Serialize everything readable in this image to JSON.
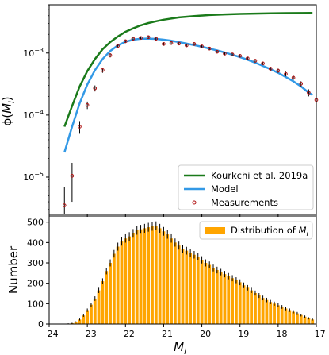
{
  "chart_data": [
    {
      "type": "line",
      "panel": "top",
      "ylabel_base": "ϕ(",
      "ylabel_sub": "M",
      "ylabel_subscript": "i",
      "ylabel_end": ")",
      "yscale": "log",
      "xlim": [
        -24,
        -17
      ],
      "ylim": [
        2.5e-06,
        0.006
      ],
      "grid": false,
      "legend_position": "lower-right",
      "y_ticks": [
        {
          "value": 1e-05,
          "base": "10",
          "exp": "−5"
        },
        {
          "value": 0.0001,
          "base": "10",
          "exp": "−4"
        },
        {
          "value": 0.001,
          "base": "10",
          "exp": "−3"
        }
      ],
      "series": [
        {
          "name": "Kourkchi et al. 2019a",
          "kind": "line",
          "color": "#1a7a1a",
          "x": [
            -23.6,
            -23.4,
            -23.2,
            -23.0,
            -22.8,
            -22.6,
            -22.4,
            -22.2,
            -22.0,
            -21.8,
            -21.6,
            -21.4,
            -21.2,
            -21.0,
            -20.6,
            -20.2,
            -19.8,
            -19.4,
            -19.0,
            -18.6,
            -18.2,
            -17.8,
            -17.4,
            -17.1
          ],
          "y": [
            6.5e-05,
            0.00014,
            0.00029,
            0.00051,
            0.0008,
            0.00115,
            0.0015,
            0.00185,
            0.0022,
            0.0025,
            0.0028,
            0.00305,
            0.00325,
            0.00345,
            0.00375,
            0.00395,
            0.0041,
            0.0042,
            0.00428,
            0.00433,
            0.00437,
            0.0044,
            0.00442,
            0.00443
          ]
        },
        {
          "name": "Model",
          "kind": "line",
          "color": "#3399e6",
          "x": [
            -23.6,
            -23.4,
            -23.2,
            -23.0,
            -22.8,
            -22.6,
            -22.4,
            -22.2,
            -22.0,
            -21.8,
            -21.6,
            -21.4,
            -21.2,
            -21.0,
            -20.8,
            -20.6,
            -20.4,
            -20.2,
            -20.0,
            -19.8,
            -19.6,
            -19.4,
            -19.2,
            -19.0,
            -18.8,
            -18.6,
            -18.4,
            -18.2,
            -18.0,
            -17.8,
            -17.6,
            -17.4,
            -17.2,
            -17.1
          ],
          "y": [
            2.5e-05,
            6.5e-05,
            0.000155,
            0.00031,
            0.00053,
            0.0008,
            0.00108,
            0.00133,
            0.00152,
            0.00164,
            0.0017,
            0.00171,
            0.00169,
            0.00164,
            0.00158,
            0.0015,
            0.00142,
            0.00134,
            0.00126,
            0.00118,
            0.0011,
            0.00102,
            0.00094,
            0.00086,
            0.00078,
            0.0007,
            0.00062,
            0.00055,
            0.00048,
            0.00041,
            0.00035,
            0.00029,
            0.00023,
            0.00021
          ]
        },
        {
          "name": "Measurements",
          "kind": "scatter",
          "color": "#b01010",
          "x": [
            -23.6,
            -23.4,
            -23.2,
            -23.0,
            -22.8,
            -22.6,
            -22.4,
            -22.2,
            -22.0,
            -21.8,
            -21.6,
            -21.4,
            -21.2,
            -21.0,
            -20.8,
            -20.6,
            -20.4,
            -20.2,
            -20.0,
            -19.8,
            -19.6,
            -19.4,
            -19.2,
            -19.0,
            -18.8,
            -18.6,
            -18.4,
            -18.2,
            -18.0,
            -17.8,
            -17.6,
            -17.4,
            -17.2,
            -17.0
          ],
          "y": [
            3.5e-06,
            1.05e-05,
            6.5e-05,
            0.000145,
            0.00027,
            0.00053,
            0.00092,
            0.0013,
            0.00155,
            0.0017,
            0.00175,
            0.0018,
            0.0017,
            0.0014,
            0.00145,
            0.00142,
            0.00133,
            0.0014,
            0.00128,
            0.00118,
            0.00105,
            0.00098,
            0.00095,
            0.0009,
            0.00082,
            0.00075,
            0.00068,
            0.00056,
            0.00052,
            0.00046,
            0.0004,
            0.00032,
            0.00023,
            0.000175
          ],
          "err_lo": [
            2.2e-06,
            6.5e-06,
            1.5e-05,
            2e-05,
            3e-05,
            5e-05,
            7e-05,
            9e-05,
            0.0001,
            0.0001,
            0.0001,
            0.0001,
            0.0001,
            9e-05,
            9e-05,
            8e-05,
            8e-05,
            8e-05,
            7e-05,
            7e-05,
            6e-05,
            6e-05,
            6e-05,
            5e-05,
            5e-05,
            5e-05,
            4e-05,
            4e-05,
            4e-05,
            4e-05,
            3e-05,
            3e-05,
            3e-05,
            2e-05
          ],
          "err_hi": [
            3.5e-06,
            6.5e-06,
            1.5e-05,
            2e-05,
            3e-05,
            5e-05,
            7e-05,
            9e-05,
            0.0001,
            0.0001,
            0.0001,
            0.0001,
            0.0001,
            9e-05,
            9e-05,
            8e-05,
            8e-05,
            8e-05,
            7e-05,
            7e-05,
            6e-05,
            6e-05,
            6e-05,
            5e-05,
            5e-05,
            5e-05,
            4e-05,
            4e-05,
            4e-05,
            4e-05,
            3e-05,
            3e-05,
            3e-05,
            2e-05
          ]
        }
      ]
    },
    {
      "type": "bar",
      "panel": "bottom",
      "xlabel_base": "M",
      "xlabel_subscript": "i",
      "ylabel": "Number",
      "xlim": [
        -24,
        -17
      ],
      "ylim": [
        0,
        530
      ],
      "grid": false,
      "legend_position": "top-right",
      "x_ticks": [
        {
          "value": -24,
          "label": "−24"
        },
        {
          "value": -23,
          "label": "−23"
        },
        {
          "value": -22,
          "label": "−22"
        },
        {
          "value": -21,
          "label": "−21"
        },
        {
          "value": -20,
          "label": "−20"
        },
        {
          "value": -19,
          "label": "−19"
        },
        {
          "value": -18,
          "label": "−18"
        },
        {
          "value": -17,
          "label": "−17"
        }
      ],
      "y_ticks": [
        {
          "value": 0,
          "label": "0"
        },
        {
          "value": 100,
          "label": "100"
        },
        {
          "value": 200,
          "label": "200"
        },
        {
          "value": 300,
          "label": "300"
        },
        {
          "value": 400,
          "label": "400"
        },
        {
          "value": 500,
          "label": "500"
        }
      ],
      "bar_width": 0.08,
      "series": [
        {
          "name_base": "Distribution of ",
          "name_var": "M",
          "name_subscript": "i",
          "color": "#ffa500",
          "x": [
            -23.9,
            -23.8,
            -23.7,
            -23.6,
            -23.5,
            -23.4,
            -23.3,
            -23.2,
            -23.1,
            -23.0,
            -22.9,
            -22.8,
            -22.7,
            -22.6,
            -22.5,
            -22.4,
            -22.3,
            -22.2,
            -22.1,
            -22.0,
            -21.9,
            -21.8,
            -21.7,
            -21.6,
            -21.5,
            -21.4,
            -21.3,
            -21.2,
            -21.1,
            -21.0,
            -20.9,
            -20.8,
            -20.7,
            -20.6,
            -20.5,
            -20.4,
            -20.3,
            -20.2,
            -20.1,
            -20.0,
            -19.9,
            -19.8,
            -19.7,
            -19.6,
            -19.5,
            -19.4,
            -19.3,
            -19.2,
            -19.1,
            -19.0,
            -18.9,
            -18.8,
            -18.7,
            -18.6,
            -18.5,
            -18.4,
            -18.3,
            -18.2,
            -18.1,
            -18.0,
            -17.9,
            -17.8,
            -17.7,
            -17.6,
            -17.5,
            -17.4,
            -17.3,
            -17.2,
            -17.1
          ],
          "values": [
            0,
            0,
            0,
            1,
            2,
            4,
            10,
            22,
            42,
            68,
            95,
            125,
            165,
            210,
            260,
            300,
            345,
            380,
            405,
            420,
            430,
            445,
            460,
            465,
            470,
            475,
            480,
            482,
            470,
            455,
            440,
            420,
            400,
            385,
            370,
            360,
            350,
            340,
            330,
            315,
            300,
            290,
            275,
            265,
            255,
            245,
            235,
            225,
            215,
            205,
            190,
            178,
            165,
            152,
            140,
            128,
            118,
            108,
            100,
            92,
            84,
            76,
            68,
            60,
            52,
            44,
            36,
            28,
            22
          ]
        }
      ]
    }
  ]
}
